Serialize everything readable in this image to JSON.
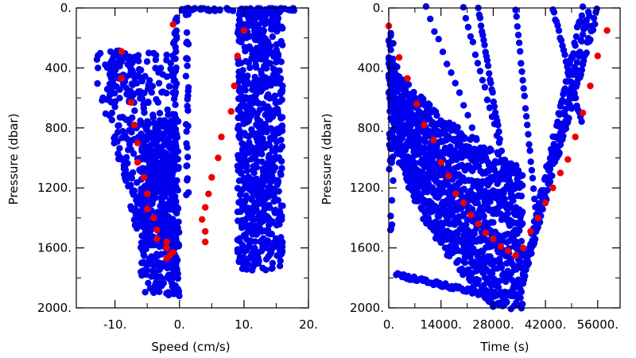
{
  "chart_data": [
    {
      "type": "scatter",
      "xlabel": "Speed (cm/s)",
      "ylabel": "Pressure (dbar)",
      "xlim": [
        -16,
        20
      ],
      "ylim": [
        2000,
        0
      ],
      "x_ticks": [
        {
          "value": -10,
          "label": "-10."
        },
        {
          "value": 0,
          "label": "0."
        },
        {
          "value": 10,
          "label": "10."
        },
        {
          "value": 20,
          "label": "20."
        }
      ],
      "y_ticks": [
        {
          "value": 0,
          "label": "0."
        },
        {
          "value": 400,
          "label": "400."
        },
        {
          "value": 800,
          "label": "800."
        },
        {
          "value": 1200,
          "label": "1200."
        },
        {
          "value": 1600,
          "label": "1600."
        },
        {
          "value": 2000,
          "label": "2000."
        }
      ],
      "series_colors": [
        "#0000ee",
        "#ee0000"
      ],
      "blue_clusters": [
        {
          "x_range": [
            -15,
            -1
          ],
          "p_range": [
            300,
            1600
          ],
          "n": 420
        },
        {
          "x_range": [
            -6,
            0
          ],
          "p_range": [
            750,
            1920
          ],
          "n": 380
        },
        {
          "x_range": [
            -11,
            -7
          ],
          "p_range": [
            280,
            560
          ],
          "n": 40
        },
        {
          "x_range": [
            9,
            16
          ],
          "p_range": [
            0,
            1750
          ],
          "n": 700
        },
        {
          "x_range": [
            0,
            18
          ],
          "p_range": [
            0,
            20
          ],
          "n": 60
        }
      ],
      "red_points": [
        [
          -1,
          110
        ],
        [
          -9,
          290
        ],
        [
          9,
          320
        ],
        [
          10,
          150
        ],
        [
          -9,
          470
        ],
        [
          8.5,
          520
        ],
        [
          -7.5,
          630
        ],
        [
          8,
          690
        ],
        [
          -7,
          780
        ],
        [
          -6.5,
          900
        ],
        [
          6.5,
          860
        ],
        [
          -6.5,
          1030
        ],
        [
          6,
          1000
        ],
        [
          -5.5,
          1130
        ],
        [
          5,
          1130
        ],
        [
          -5,
          1240
        ],
        [
          4.5,
          1240
        ],
        [
          -5,
          1340
        ],
        [
          4,
          1330
        ],
        [
          -4,
          1400
        ],
        [
          3.5,
          1410
        ],
        [
          -3.5,
          1480
        ],
        [
          4,
          1490
        ],
        [
          -3.5,
          1540
        ],
        [
          4,
          1560
        ],
        [
          -2,
          1560
        ],
        [
          -2,
          1600
        ],
        [
          -1.5,
          1650
        ],
        [
          -2,
          1670
        ],
        [
          -1,
          1630
        ]
      ]
    },
    {
      "type": "scatter",
      "xlabel": "Time (s)",
      "ylabel": "Pressure (dbar)",
      "xlim": [
        0,
        62000
      ],
      "ylim": [
        2000,
        0
      ],
      "x_ticks": [
        {
          "value": 0,
          "label": "0."
        },
        {
          "value": 14000,
          "label": "14000."
        },
        {
          "value": 28000,
          "label": "28000."
        },
        {
          "value": 42000,
          "label": "42000."
        },
        {
          "value": 56000,
          "label": "56000."
        }
      ],
      "y_ticks": [
        {
          "value": 0,
          "label": "0."
        },
        {
          "value": 400,
          "label": "400."
        },
        {
          "value": 800,
          "label": "800."
        },
        {
          "value": 1200,
          "label": "1200."
        },
        {
          "value": 1600,
          "label": "1600."
        },
        {
          "value": 2000,
          "label": "2000."
        }
      ],
      "series_colors": [
        "#0000ee",
        "#ee0000"
      ],
      "red_points": [
        [
          0,
          120
        ],
        [
          2800,
          330
        ],
        [
          5000,
          470
        ],
        [
          7500,
          640
        ],
        [
          9500,
          780
        ],
        [
          12000,
          880
        ],
        [
          14000,
          1030
        ],
        [
          16000,
          1120
        ],
        [
          18000,
          1240
        ],
        [
          20000,
          1300
        ],
        [
          22000,
          1380
        ],
        [
          24000,
          1440
        ],
        [
          26000,
          1500
        ],
        [
          28000,
          1540
        ],
        [
          30000,
          1590
        ],
        [
          32000,
          1620
        ],
        [
          34000,
          1650
        ],
        [
          36000,
          1600
        ],
        [
          38000,
          1490
        ],
        [
          40000,
          1400
        ],
        [
          42000,
          1300
        ],
        [
          44000,
          1200
        ],
        [
          46000,
          1100
        ],
        [
          48000,
          1010
        ],
        [
          50000,
          860
        ],
        [
          52000,
          700
        ],
        [
          54000,
          520
        ],
        [
          56000,
          320
        ],
        [
          58500,
          150
        ]
      ]
    }
  ]
}
